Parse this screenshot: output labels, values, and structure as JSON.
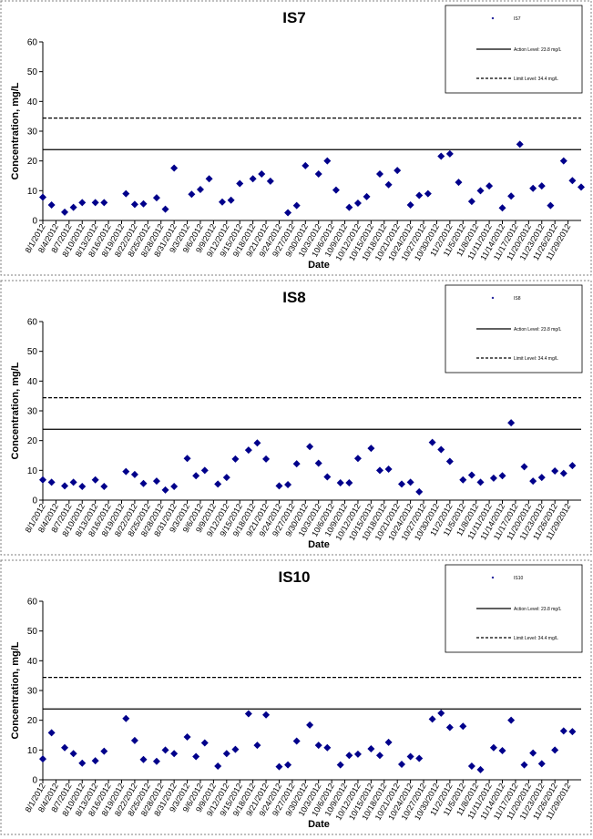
{
  "chart_data": [
    {
      "type": "scatter",
      "title": "IS7",
      "xlabel": "Date",
      "ylabel": "Concentration, mg/L",
      "ylim": [
        0,
        60
      ],
      "yticks": [
        0,
        10,
        20,
        30,
        40,
        50,
        60
      ],
      "grid": false,
      "legend_position": "top-right",
      "x_tick_labels": [
        "8/1/2012",
        "8/4/2012",
        "8/7/2012",
        "8/10/2012",
        "8/13/2012",
        "8/16/2012",
        "8/19/2012",
        "8/22/2012",
        "8/25/2012",
        "8/28/2012",
        "8/31/2012",
        "9/3/2012",
        "9/6/2012",
        "9/9/2012",
        "9/12/2012",
        "9/15/2012",
        "9/18/2012",
        "9/21/2012",
        "9/24/2012",
        "9/27/2012",
        "9/30/2012",
        "10/3/2012",
        "10/6/2012",
        "10/9/2012",
        "10/12/2012",
        "10/15/2012",
        "10/18/2012",
        "10/21/2012",
        "10/24/2012",
        "10/27/2012",
        "10/30/2012",
        "11/2/2012",
        "11/5/2012",
        "11/8/2012",
        "11/11/2012",
        "11/14/2012",
        "11/17/2012",
        "11/20/2012",
        "11/23/2012",
        "11/26/2012",
        "11/29/2012"
      ],
      "series": [
        {
          "name": "IS7",
          "marker_color": "#00008b",
          "points": [
            [
              "8/1/2012",
              7.8
            ],
            [
              "8/3/2012",
              5.2
            ],
            [
              "8/6/2012",
              2.8
            ],
            [
              "8/8/2012",
              4.4
            ],
            [
              "8/10/2012",
              6.0
            ],
            [
              "8/13/2012",
              6.0
            ],
            [
              "8/15/2012",
              6.0
            ],
            [
              "8/20/2012",
              9.0
            ],
            [
              "8/22/2012",
              5.4
            ],
            [
              "8/24/2012",
              5.6
            ],
            [
              "8/27/2012",
              7.6
            ],
            [
              "8/29/2012",
              3.8
            ],
            [
              "8/31/2012",
              17.6
            ],
            [
              "9/4/2012",
              8.8
            ],
            [
              "9/6/2012",
              10.4
            ],
            [
              "9/8/2012",
              14.0
            ],
            [
              "9/11/2012",
              6.2
            ],
            [
              "9/13/2012",
              6.8
            ],
            [
              "9/15/2012",
              12.4
            ],
            [
              "9/18/2012",
              14.0
            ],
            [
              "9/20/2012",
              15.6
            ],
            [
              "9/22/2012",
              13.2
            ],
            [
              "9/26/2012",
              2.6
            ],
            [
              "9/28/2012",
              5.0
            ],
            [
              "9/30/2012",
              18.4
            ],
            [
              "10/3/2012",
              15.6
            ],
            [
              "10/5/2012",
              20.0
            ],
            [
              "10/7/2012",
              10.2
            ],
            [
              "10/10/2012",
              4.4
            ],
            [
              "10/12/2012",
              5.8
            ],
            [
              "10/14/2012",
              8.0
            ],
            [
              "10/17/2012",
              15.6
            ],
            [
              "10/19/2012",
              12.0
            ],
            [
              "10/21/2012",
              16.8
            ],
            [
              "10/24/2012",
              5.2
            ],
            [
              "10/26/2012",
              8.4
            ],
            [
              "10/28/2012",
              9.0
            ],
            [
              "10/31/2012",
              21.6
            ],
            [
              "11/2/2012",
              22.4
            ],
            [
              "11/4/2012",
              12.8
            ],
            [
              "11/7/2012",
              6.4
            ],
            [
              "11/9/2012",
              10.0
            ],
            [
              "11/11/2012",
              11.6
            ],
            [
              "11/14/2012",
              4.2
            ],
            [
              "11/16/2012",
              8.2
            ],
            [
              "11/18/2012",
              25.6
            ],
            [
              "11/21/2012",
              10.8
            ],
            [
              "11/23/2012",
              11.6
            ],
            [
              "11/25/2012",
              5.0
            ],
            [
              "11/28/2012",
              20.0
            ],
            [
              "11/30/2012",
              13.4
            ],
            [
              "12/2/2012",
              11.2
            ]
          ]
        },
        {
          "name": "Action Level: 23.8 mg/L",
          "type": "hline",
          "y": 23.8,
          "style": "solid"
        },
        {
          "name": "Limit Level: 34.4 mg/L",
          "type": "hline",
          "y": 34.4,
          "style": "dashed"
        }
      ]
    },
    {
      "type": "scatter",
      "title": "IS8",
      "xlabel": "Date",
      "ylabel": "Concentration, mg/L",
      "ylim": [
        0,
        60
      ],
      "yticks": [
        0,
        10,
        20,
        30,
        40,
        50,
        60
      ],
      "grid": false,
      "legend_position": "top-right",
      "x_tick_labels": [
        "8/1/2012",
        "8/4/2012",
        "8/7/2012",
        "8/10/2012",
        "8/13/2012",
        "8/16/2012",
        "8/19/2012",
        "8/22/2012",
        "8/25/2012",
        "8/28/2012",
        "8/31/2012",
        "9/3/2012",
        "9/6/2012",
        "9/9/2012",
        "9/12/2012",
        "9/15/2012",
        "9/18/2012",
        "9/21/2012",
        "9/24/2012",
        "9/27/2012",
        "9/30/2012",
        "10/3/2012",
        "10/6/2012",
        "10/9/2012",
        "10/12/2012",
        "10/15/2012",
        "10/18/2012",
        "10/21/2012",
        "10/24/2012",
        "10/27/2012",
        "10/30/2012",
        "11/2/2012",
        "11/5/2012",
        "11/8/2012",
        "11/11/2012",
        "11/14/2012",
        "11/17/2012",
        "11/20/2012",
        "11/23/2012",
        "11/26/2012",
        "11/29/2012"
      ],
      "series": [
        {
          "name": "IS8",
          "marker_color": "#00008b",
          "points": [
            [
              "8/1/2012",
              6.8
            ],
            [
              "8/3/2012",
              6.0
            ],
            [
              "8/6/2012",
              4.8
            ],
            [
              "8/8/2012",
              6.0
            ],
            [
              "8/10/2012",
              4.6
            ],
            [
              "8/13/2012",
              6.8
            ],
            [
              "8/15/2012",
              4.6
            ],
            [
              "8/20/2012",
              9.6
            ],
            [
              "8/22/2012",
              8.6
            ],
            [
              "8/24/2012",
              5.6
            ],
            [
              "8/27/2012",
              6.4
            ],
            [
              "8/29/2012",
              3.4
            ],
            [
              "8/31/2012",
              4.6
            ],
            [
              "9/3/2012",
              14.0
            ],
            [
              "9/5/2012",
              8.2
            ],
            [
              "9/7/2012",
              10.0
            ],
            [
              "9/10/2012",
              5.4
            ],
            [
              "9/12/2012",
              7.6
            ],
            [
              "9/14/2012",
              13.8
            ],
            [
              "9/17/2012",
              16.8
            ],
            [
              "9/19/2012",
              19.2
            ],
            [
              "9/21/2012",
              13.8
            ],
            [
              "9/24/2012",
              4.8
            ],
            [
              "9/26/2012",
              5.2
            ],
            [
              "9/28/2012",
              12.2
            ],
            [
              "10/1/2012",
              18.0
            ],
            [
              "10/3/2012",
              12.4
            ],
            [
              "10/5/2012",
              7.8
            ],
            [
              "10/8/2012",
              5.8
            ],
            [
              "10/10/2012",
              5.8
            ],
            [
              "10/12/2012",
              14.0
            ],
            [
              "10/15/2012",
              17.4
            ],
            [
              "10/17/2012",
              10.0
            ],
            [
              "10/19/2012",
              10.4
            ],
            [
              "10/22/2012",
              5.4
            ],
            [
              "10/24/2012",
              6.0
            ],
            [
              "10/26/2012",
              2.8
            ],
            [
              "10/29/2012",
              19.4
            ],
            [
              "10/31/2012",
              17.0
            ],
            [
              "11/2/2012",
              13.0
            ],
            [
              "11/5/2012",
              6.8
            ],
            [
              "11/7/2012",
              8.4
            ],
            [
              "11/9/2012",
              6.0
            ],
            [
              "11/12/2012",
              7.4
            ],
            [
              "11/14/2012",
              8.2
            ],
            [
              "11/16/2012",
              26.0
            ],
            [
              "11/19/2012",
              11.2
            ],
            [
              "11/21/2012",
              6.4
            ],
            [
              "11/23/2012",
              7.6
            ],
            [
              "11/26/2012",
              9.8
            ],
            [
              "11/28/2012",
              9.0
            ],
            [
              "11/30/2012",
              11.6
            ]
          ]
        },
        {
          "name": "Action Level: 23.8 mg/L",
          "type": "hline",
          "y": 23.8,
          "style": "solid"
        },
        {
          "name": "Limit Level: 34.4 mg/L",
          "type": "hline",
          "y": 34.4,
          "style": "dashed"
        }
      ]
    },
    {
      "type": "scatter",
      "title": "IS10",
      "xlabel": "Date",
      "ylabel": "Concentration, mg/L",
      "ylim": [
        0,
        60
      ],
      "yticks": [
        0,
        10,
        20,
        30,
        40,
        50,
        60
      ],
      "grid": false,
      "legend_position": "top-right",
      "x_tick_labels": [
        "8/1/2012",
        "8/4/2012",
        "8/7/2012",
        "8/10/2012",
        "8/13/2012",
        "8/16/2012",
        "8/19/2012",
        "8/22/2012",
        "8/25/2012",
        "8/28/2012",
        "8/31/2012",
        "9/3/2012",
        "9/6/2012",
        "9/9/2012",
        "9/12/2012",
        "9/15/2012",
        "9/18/2012",
        "9/21/2012",
        "9/24/2012",
        "9/27/2012",
        "9/30/2012",
        "10/3/2012",
        "10/6/2012",
        "10/9/2012",
        "10/12/2012",
        "10/15/2012",
        "10/18/2012",
        "10/21/2012",
        "10/24/2012",
        "10/27/2012",
        "10/30/2012",
        "11/2/2012",
        "11/5/2012",
        "11/8/2012",
        "11/11/2012",
        "11/14/2012",
        "11/17/2012",
        "11/20/2012",
        "11/23/2012",
        "11/26/2012",
        "11/29/2012"
      ],
      "series": [
        {
          "name": "IS10",
          "marker_color": "#00008b",
          "points": [
            [
              "8/1/2012",
              7.0
            ],
            [
              "8/3/2012",
              15.8
            ],
            [
              "8/6/2012",
              10.8
            ],
            [
              "8/8/2012",
              8.8
            ],
            [
              "8/10/2012",
              5.6
            ],
            [
              "8/13/2012",
              6.4
            ],
            [
              "8/15/2012",
              9.6
            ],
            [
              "8/20/2012",
              20.6
            ],
            [
              "8/22/2012",
              13.2
            ],
            [
              "8/24/2012",
              6.8
            ],
            [
              "8/27/2012",
              6.2
            ],
            [
              "8/29/2012",
              10.0
            ],
            [
              "8/31/2012",
              8.8
            ],
            [
              "9/3/2012",
              14.4
            ],
            [
              "9/5/2012",
              7.8
            ],
            [
              "9/7/2012",
              12.4
            ],
            [
              "9/10/2012",
              4.6
            ],
            [
              "9/12/2012",
              8.8
            ],
            [
              "9/14/2012",
              10.2
            ],
            [
              "9/17/2012",
              22.2
            ],
            [
              "9/19/2012",
              11.6
            ],
            [
              "9/21/2012",
              21.8
            ],
            [
              "9/24/2012",
              4.4
            ],
            [
              "9/26/2012",
              5.0
            ],
            [
              "9/28/2012",
              13.0
            ],
            [
              "10/1/2012",
              18.4
            ],
            [
              "10/3/2012",
              11.6
            ],
            [
              "10/5/2012",
              10.8
            ],
            [
              "10/8/2012",
              5.0
            ],
            [
              "10/10/2012",
              8.2
            ],
            [
              "10/12/2012",
              8.6
            ],
            [
              "10/15/2012",
              10.4
            ],
            [
              "10/17/2012",
              8.2
            ],
            [
              "10/19/2012",
              12.6
            ],
            [
              "10/22/2012",
              5.2
            ],
            [
              "10/24/2012",
              7.8
            ],
            [
              "10/26/2012",
              7.2
            ],
            [
              "10/29/2012",
              20.4
            ],
            [
              "10/31/2012",
              22.4
            ],
            [
              "11/2/2012",
              17.6
            ],
            [
              "11/5/2012",
              18.0
            ],
            [
              "11/7/2012",
              4.6
            ],
            [
              "11/9/2012",
              3.4
            ],
            [
              "11/12/2012",
              10.8
            ],
            [
              "11/14/2012",
              9.8
            ],
            [
              "11/16/2012",
              20.0
            ],
            [
              "11/19/2012",
              5.0
            ],
            [
              "11/21/2012",
              9.0
            ],
            [
              "11/23/2012",
              5.4
            ],
            [
              "11/26/2012",
              10.0
            ],
            [
              "11/28/2012",
              16.4
            ],
            [
              "11/30/2012",
              16.2
            ]
          ]
        },
        {
          "name": "Action Level: 23.8 mg/L",
          "type": "hline",
          "y": 23.8,
          "style": "solid"
        },
        {
          "name": "Limit Level: 34.4 mg/L",
          "type": "hline",
          "y": 34.4,
          "style": "dashed"
        }
      ]
    }
  ]
}
